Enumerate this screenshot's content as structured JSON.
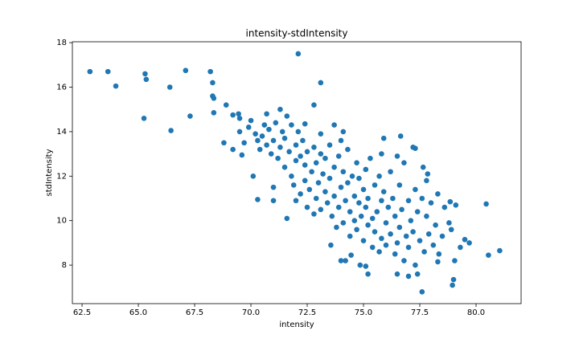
{
  "chart_data": {
    "type": "scatter",
    "title": "intensity-stdIntensity",
    "x_label": "intensity",
    "y_label": "stdIntensity",
    "color": "#1f77b4",
    "grid": false,
    "xlim": [
      62.07,
      82.0
    ],
    "ylim": [
      6.27,
      18.04
    ],
    "xticks": [
      62.5,
      {
        "value": 65,
        "label": "65.0"
      },
      67.5,
      {
        "value": 70,
        "label": "70.0"
      },
      72.5,
      {
        "value": 75,
        "label": "75.0"
      },
      77.5,
      {
        "value": 80,
        "label": "80.0"
      }
    ],
    "yticks": [
      8,
      10,
      12,
      14,
      16,
      18
    ],
    "x": [
      62.85,
      63.65,
      64.0,
      65.3,
      65.35,
      65.25,
      66.4,
      66.45,
      67.1,
      67.3,
      68.2,
      68.3,
      68.3,
      68.35,
      68.35,
      68.8,
      68.9,
      69.2,
      69.2,
      69.45,
      69.5,
      69.5,
      69.7,
      69.6,
      72.1,
      73.1,
      72.8,
      70.3,
      71.0,
      71.6,
      73.55,
      74.0,
      74.2,
      74.45,
      74.85,
      75.1,
      75.2,
      76.5,
      77.0,
      77.4,
      77.6,
      78.95,
      79.0,
      80.45,
      80.55,
      81.05,
      79.5,
      79.7,
      79.1,
      78.85,
      78.9,
      79.3,
      79.05,
      78.3,
      78.35,
      77.85,
      77.8,
      77.65,
      77.3,
      77.2,
      76.65,
      75.9,
      74.1,
      73.7,
      73.1,
      72.4,
      69.9,
      70.0,
      70.2,
      70.3,
      70.4,
      70.5,
      70.6,
      70.7,
      70.7,
      70.8,
      70.9,
      71.0,
      71.1,
      71.2,
      71.3,
      71.3,
      71.4,
      71.5,
      71.5,
      71.6,
      71.7,
      71.8,
      71.8,
      71.9,
      72.0,
      72.0,
      72.1,
      72.2,
      72.2,
      72.3,
      72.4,
      72.4,
      72.5,
      72.5,
      72.6,
      72.7,
      72.8,
      72.8,
      72.9,
      72.9,
      73.0,
      73.1,
      73.1,
      73.2,
      73.3,
      73.3,
      73.4,
      73.5,
      73.5,
      73.6,
      73.7,
      73.7,
      73.8,
      73.9,
      73.9,
      74.0,
      74.1,
      74.1,
      74.2,
      74.3,
      74.3,
      74.4,
      74.4,
      74.5,
      74.6,
      74.6,
      74.7,
      74.7,
      74.8,
      74.8,
      74.9,
      75.0,
      75.0,
      75.1,
      75.1,
      75.2,
      75.2,
      75.3,
      75.4,
      75.4,
      75.5,
      75.5,
      75.6,
      75.7,
      75.7,
      75.8,
      75.8,
      75.9,
      76.0,
      76.0,
      76.1,
      76.2,
      76.2,
      76.3,
      76.4,
      76.4,
      76.5,
      76.6,
      76.6,
      76.7,
      76.8,
      76.8,
      76.9,
      77.0,
      77.0,
      77.1,
      77.2,
      77.3,
      77.3,
      77.4,
      77.5,
      77.6,
      77.7,
      77.8,
      77.9,
      78.0,
      78.1,
      78.2,
      78.3,
      78.5,
      78.6,
      78.8,
      70.1,
      71.0,
      72.0,
      74.0,
      75.8,
      76.5
    ],
    "values": [
      16.7,
      16.7,
      16.05,
      16.6,
      16.35,
      14.6,
      16.0,
      14.05,
      16.75,
      14.7,
      16.7,
      16.2,
      15.6,
      15.5,
      14.85,
      13.5,
      15.2,
      14.75,
      13.2,
      14.8,
      14.6,
      14.0,
      13.5,
      12.95,
      17.5,
      16.2,
      15.2,
      10.95,
      10.9,
      10.1,
      8.9,
      8.2,
      8.2,
      8.45,
      8.0,
      7.95,
      7.6,
      7.6,
      7.5,
      7.6,
      6.8,
      7.1,
      7.35,
      10.75,
      8.45,
      8.65,
      9.15,
      9.0,
      10.7,
      10.85,
      9.6,
      8.8,
      8.2,
      8.15,
      8.5,
      12.1,
      11.8,
      12.4,
      13.25,
      13.3,
      13.8,
      13.7,
      14.0,
      14.3,
      13.9,
      14.35,
      14.2,
      14.5,
      13.9,
      13.6,
      13.2,
      13.8,
      14.3,
      14.8,
      13.4,
      14.1,
      13.0,
      13.6,
      14.4,
      12.8,
      15.0,
      13.3,
      14.0,
      12.4,
      13.7,
      14.7,
      13.1,
      12.0,
      14.3,
      11.6,
      13.4,
      12.7,
      14.0,
      11.2,
      12.9,
      13.6,
      11.8,
      12.5,
      10.6,
      13.1,
      11.4,
      12.2,
      10.3,
      13.3,
      11.0,
      12.6,
      11.7,
      10.5,
      13.0,
      12.1,
      11.3,
      12.8,
      10.8,
      13.4,
      11.9,
      10.2,
      12.4,
      11.1,
      9.7,
      12.9,
      10.6,
      11.5,
      9.9,
      12.2,
      10.9,
      13.2,
      11.7,
      10.4,
      9.3,
      12.0,
      11.1,
      10.0,
      12.6,
      9.6,
      10.8,
      11.9,
      10.2,
      11.4,
      9.1,
      12.3,
      10.6,
      9.8,
      11.0,
      12.8,
      10.1,
      8.8,
      11.6,
      9.5,
      10.4,
      12.0,
      8.6,
      10.9,
      9.2,
      11.3,
      9.9,
      8.9,
      10.6,
      12.2,
      9.4,
      11.0,
      8.5,
      10.2,
      9.0,
      11.6,
      9.7,
      10.5,
      8.2,
      12.6,
      9.3,
      10.9,
      8.8,
      10.0,
      9.5,
      11.4,
      8.0,
      10.4,
      9.1,
      11.0,
      8.6,
      10.2,
      9.4,
      10.8,
      8.9,
      9.8,
      11.2,
      9.3,
      10.6,
      9.9,
      12.0,
      11.5,
      10.9,
      13.6,
      13.0,
      12.9
    ]
  }
}
